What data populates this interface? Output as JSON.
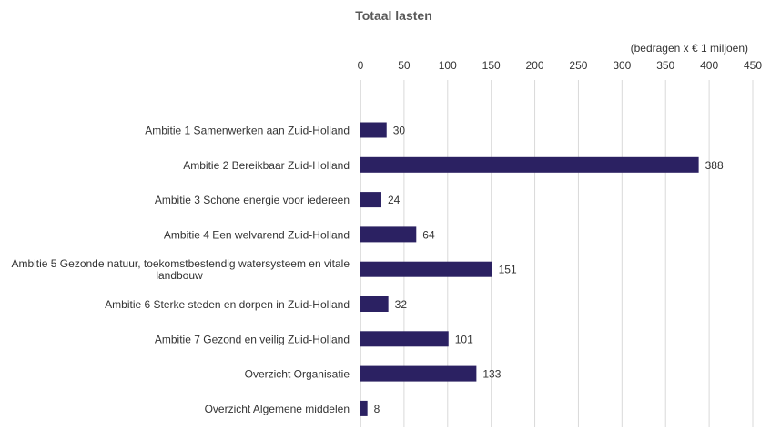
{
  "chart_data": {
    "type": "bar",
    "orientation": "horizontal",
    "title": "Totaal lasten",
    "unit_label": "(bedragen  x € 1 miljoen)",
    "xlim": [
      0,
      450
    ],
    "xticks": [
      0,
      50,
      100,
      150,
      200,
      250,
      300,
      350,
      400,
      450
    ],
    "axis_position": "top",
    "grid": true,
    "bar_color": "#2b2162",
    "categories": [
      [
        "Ambitie 1 Samenwerken aan Zuid-Holland"
      ],
      [
        "Ambitie 2 Bereikbaar Zuid-Holland"
      ],
      [
        "Ambitie 3 Schone energie voor iedereen"
      ],
      [
        "Ambitie 4 Een welvarend Zuid-Holland"
      ],
      [
        "Ambitie 5 Gezonde natuur, toekomstbestendig watersysteem en vitale",
        "landbouw"
      ],
      [
        "Ambitie 6 Sterke steden en dorpen in Zuid-Holland"
      ],
      [
        "Ambitie 7 Gezond en veilig Zuid-Holland"
      ],
      [
        "Overzicht Organisatie"
      ],
      [
        "Overzicht Algemene middelen"
      ]
    ],
    "values": [
      30,
      388,
      24,
      64,
      151,
      32,
      101,
      133,
      8
    ]
  }
}
